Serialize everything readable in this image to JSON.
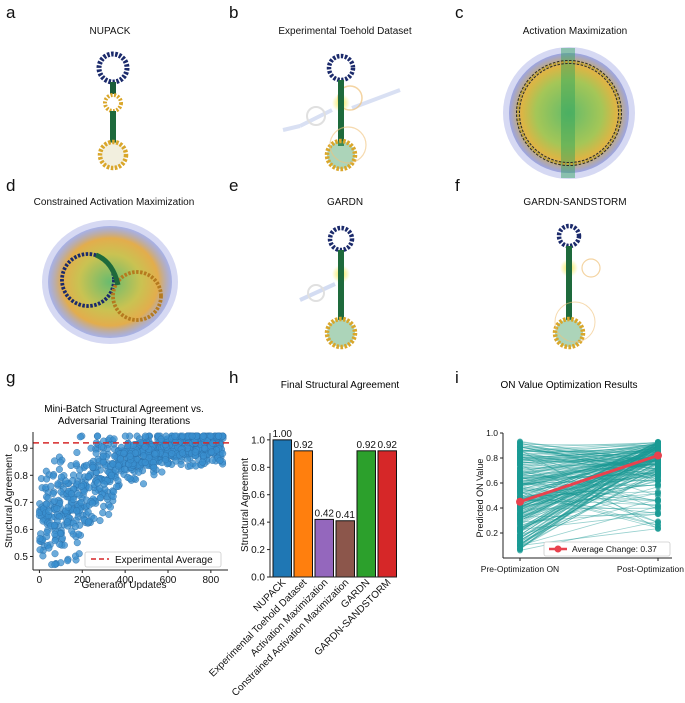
{
  "panels": [
    {
      "letter": "a",
      "title": "NUPACK"
    },
    {
      "letter": "b",
      "title": "Experimental Toehold Dataset"
    },
    {
      "letter": "c",
      "title": "Activation Maximization"
    },
    {
      "letter": "d",
      "title": "Constrained Activation Maximization"
    },
    {
      "letter": "e",
      "title": "GARDN"
    },
    {
      "letter": "f",
      "title": "GARDN-SANDSTORM"
    },
    {
      "letter": "g",
      "title": ""
    },
    {
      "letter": "h",
      "title": ""
    },
    {
      "letter": "i",
      "title": ""
    }
  ],
  "colors": {
    "blue": "#1f77b4",
    "orange": "#ff7f0e",
    "purple": "#9467bd",
    "brown": "#8c564b",
    "green": "#2ca02c",
    "red": "#d62728",
    "teal": "#1a9a94",
    "scatter": "#3a8fcf",
    "dashed": "#d62728",
    "avgline": "#e8424e"
  },
  "chart_data": [
    {
      "id": "g",
      "type": "scatter",
      "title": "Mini-Batch Structural Agreement vs. Adversarial Training Iterations",
      "title_lines": [
        "Mini-Batch Structural Agreement vs.",
        "Adversarial Training Iterations"
      ],
      "xlabel": "Generator Updates",
      "ylabel": "Structural Agreement",
      "xlim": [
        -30,
        880
      ],
      "ylim": [
        0.45,
        0.96
      ],
      "xticks": [
        0,
        200,
        400,
        600,
        800
      ],
      "yticks": [
        0.5,
        0.6,
        0.7,
        0.8,
        0.9
      ],
      "reference_line": {
        "y": 0.92,
        "label": "Experimental Average"
      },
      "n_points": 900,
      "trend": [
        [
          0,
          0.66
        ],
        [
          100,
          0.68
        ],
        [
          200,
          0.72
        ],
        [
          300,
          0.8
        ],
        [
          400,
          0.86
        ],
        [
          500,
          0.88
        ],
        [
          600,
          0.895
        ],
        [
          700,
          0.905
        ],
        [
          860,
          0.91
        ]
      ]
    },
    {
      "id": "h",
      "type": "bar",
      "title": "Final Structural Agreement",
      "ylabel": "Structural Agreement",
      "ylim": [
        0,
        1.05
      ],
      "yticks": [
        0.0,
        0.2,
        0.4,
        0.6,
        0.8,
        1.0
      ],
      "categories": [
        "NUPACK",
        "Experimental Toehold Dataset",
        "Activation Maximization",
        "Constrained Activation Maximization",
        "GARDN",
        "GARDN-SANDSTORM"
      ],
      "values": [
        1.0,
        0.92,
        0.42,
        0.41,
        0.92,
        0.92
      ],
      "value_labels": [
        "1.00",
        "0.92",
        "0.42",
        "0.41",
        "0.92",
        "0.92"
      ]
    },
    {
      "id": "i",
      "type": "line",
      "title": "ON Value Optimization Results",
      "ylabel": "Predicted ON Value",
      "categories": [
        "Pre-Optimization ON",
        "Post-Optimization ON"
      ],
      "ylim": [
        0.0,
        1.0
      ],
      "yticks": [
        0.2,
        0.4,
        0.6,
        0.8,
        1.0
      ],
      "average": [
        0.45,
        0.82
      ],
      "legend": "Average Change: 0.37",
      "n_lines": 220
    }
  ]
}
